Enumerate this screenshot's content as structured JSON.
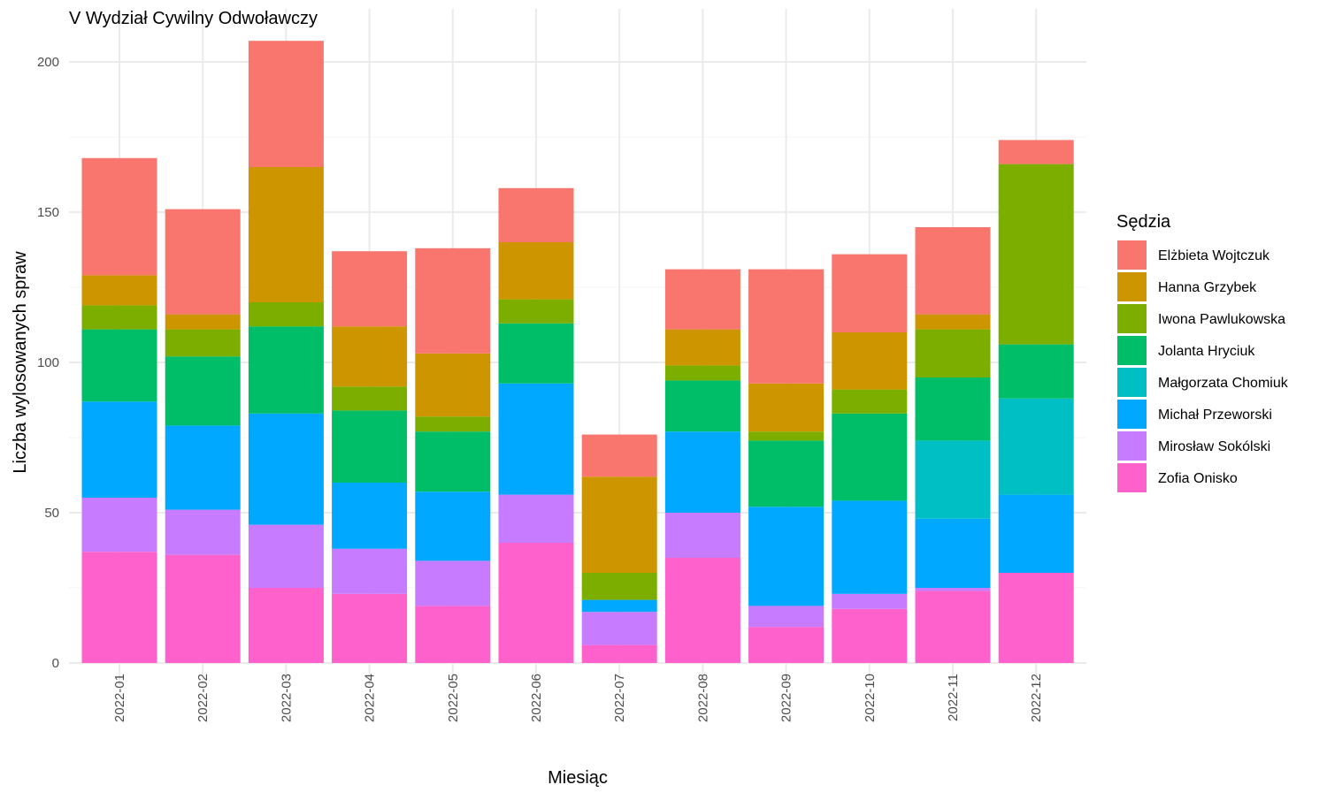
{
  "chart_data": {
    "type": "bar",
    "stacked": true,
    "title": "V Wydział Cywilny Odwoławczy",
    "xlabel": "Miesiąc",
    "ylabel": "Liczba wylosowanych spraw",
    "ylim": [
      0,
      215
    ],
    "yticks": [
      0,
      50,
      100,
      150,
      200
    ],
    "grid": true,
    "legend_title": "Sędzia",
    "legend_position": "right",
    "categories": [
      "2022-01",
      "2022-02",
      "2022-03",
      "2022-04",
      "2022-05",
      "2022-06",
      "2022-07",
      "2022-08",
      "2022-09",
      "2022-10",
      "2022-11",
      "2022-12"
    ],
    "series": [
      {
        "name": "Zofia Onisko",
        "color": "#FF61CC",
        "values": [
          37,
          36,
          25,
          23,
          19,
          40,
          6,
          35,
          12,
          18,
          24,
          30
        ]
      },
      {
        "name": "Mirosław Sokólski",
        "color": "#C77CFF",
        "values": [
          18,
          15,
          21,
          15,
          15,
          16,
          11,
          15,
          7,
          5,
          1,
          0
        ]
      },
      {
        "name": "Michał Przeworski",
        "color": "#00A9FF",
        "values": [
          32,
          28,
          37,
          22,
          23,
          37,
          4,
          27,
          33,
          31,
          23,
          26
        ]
      },
      {
        "name": "Małgorzata Chomiuk",
        "color": "#00BFC4",
        "values": [
          0,
          0,
          0,
          0,
          0,
          0,
          0,
          0,
          0,
          0,
          26,
          32
        ]
      },
      {
        "name": "Jolanta Hryciuk",
        "color": "#00BE67",
        "values": [
          24,
          23,
          29,
          24,
          20,
          20,
          0,
          17,
          22,
          29,
          21,
          18
        ]
      },
      {
        "name": "Iwona Pawlukowska",
        "color": "#7CAE00",
        "values": [
          8,
          9,
          8,
          8,
          5,
          8,
          9,
          5,
          3,
          8,
          16,
          60
        ]
      },
      {
        "name": "Hanna Grzybek",
        "color": "#CD9600",
        "values": [
          10,
          5,
          45,
          20,
          21,
          19,
          32,
          12,
          16,
          19,
          5,
          0
        ]
      },
      {
        "name": "Elżbieta Wojtczuk",
        "color": "#F8766D",
        "values": [
          39,
          35,
          42,
          25,
          35,
          18,
          14,
          20,
          38,
          26,
          29,
          8
        ]
      }
    ],
    "legend_order": [
      "Elżbieta Wojtczuk",
      "Hanna Grzybek",
      "Iwona Pawlukowska",
      "Jolanta Hryciuk",
      "Małgorzata Chomiuk",
      "Michał Przeworski",
      "Mirosław Sokólski",
      "Zofia Onisko"
    ]
  }
}
